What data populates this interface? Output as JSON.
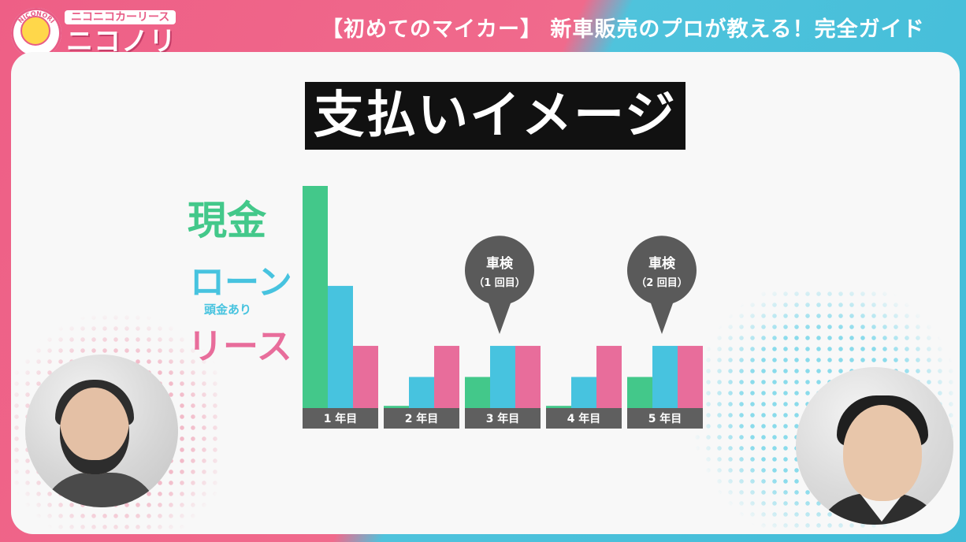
{
  "brand": {
    "arc_text": "NICONORI",
    "sub": "ニコニコカーリース",
    "name": "ニコノリ"
  },
  "header": {
    "title": "【初めてのマイカー】 新車販売のプロが教える！完全ガイド"
  },
  "colors": {
    "cash": "#43c88a",
    "loan": "#47c3df",
    "lease": "#e86d9b",
    "label_bg": "#5f5f5f",
    "callout_bg": "#5a5a5a",
    "header_pink": "#ee5f86",
    "header_blue": "#41bcd8"
  },
  "chart_data": {
    "type": "bar",
    "title": "支払いイメージ",
    "categories": [
      "1 年目",
      "2 年目",
      "3 年目",
      "4 年目",
      "5 年目"
    ],
    "series": [
      {
        "name": "現金",
        "values": [
          100,
          1,
          14,
          1,
          14
        ]
      },
      {
        "name": "ローン",
        "note": "頭金あり",
        "values": [
          55,
          14,
          28,
          14,
          28
        ]
      },
      {
        "name": "リース",
        "values": [
          28,
          28,
          28,
          28,
          28
        ]
      }
    ],
    "ylim": [
      0,
      100
    ],
    "grid": false,
    "legend": "left",
    "annotations": [
      {
        "category": "3 年目",
        "line1": "車検",
        "line2": "（1 回目）"
      },
      {
        "category": "5 年目",
        "line1": "車検",
        "line2": "（2 回目）"
      }
    ]
  }
}
